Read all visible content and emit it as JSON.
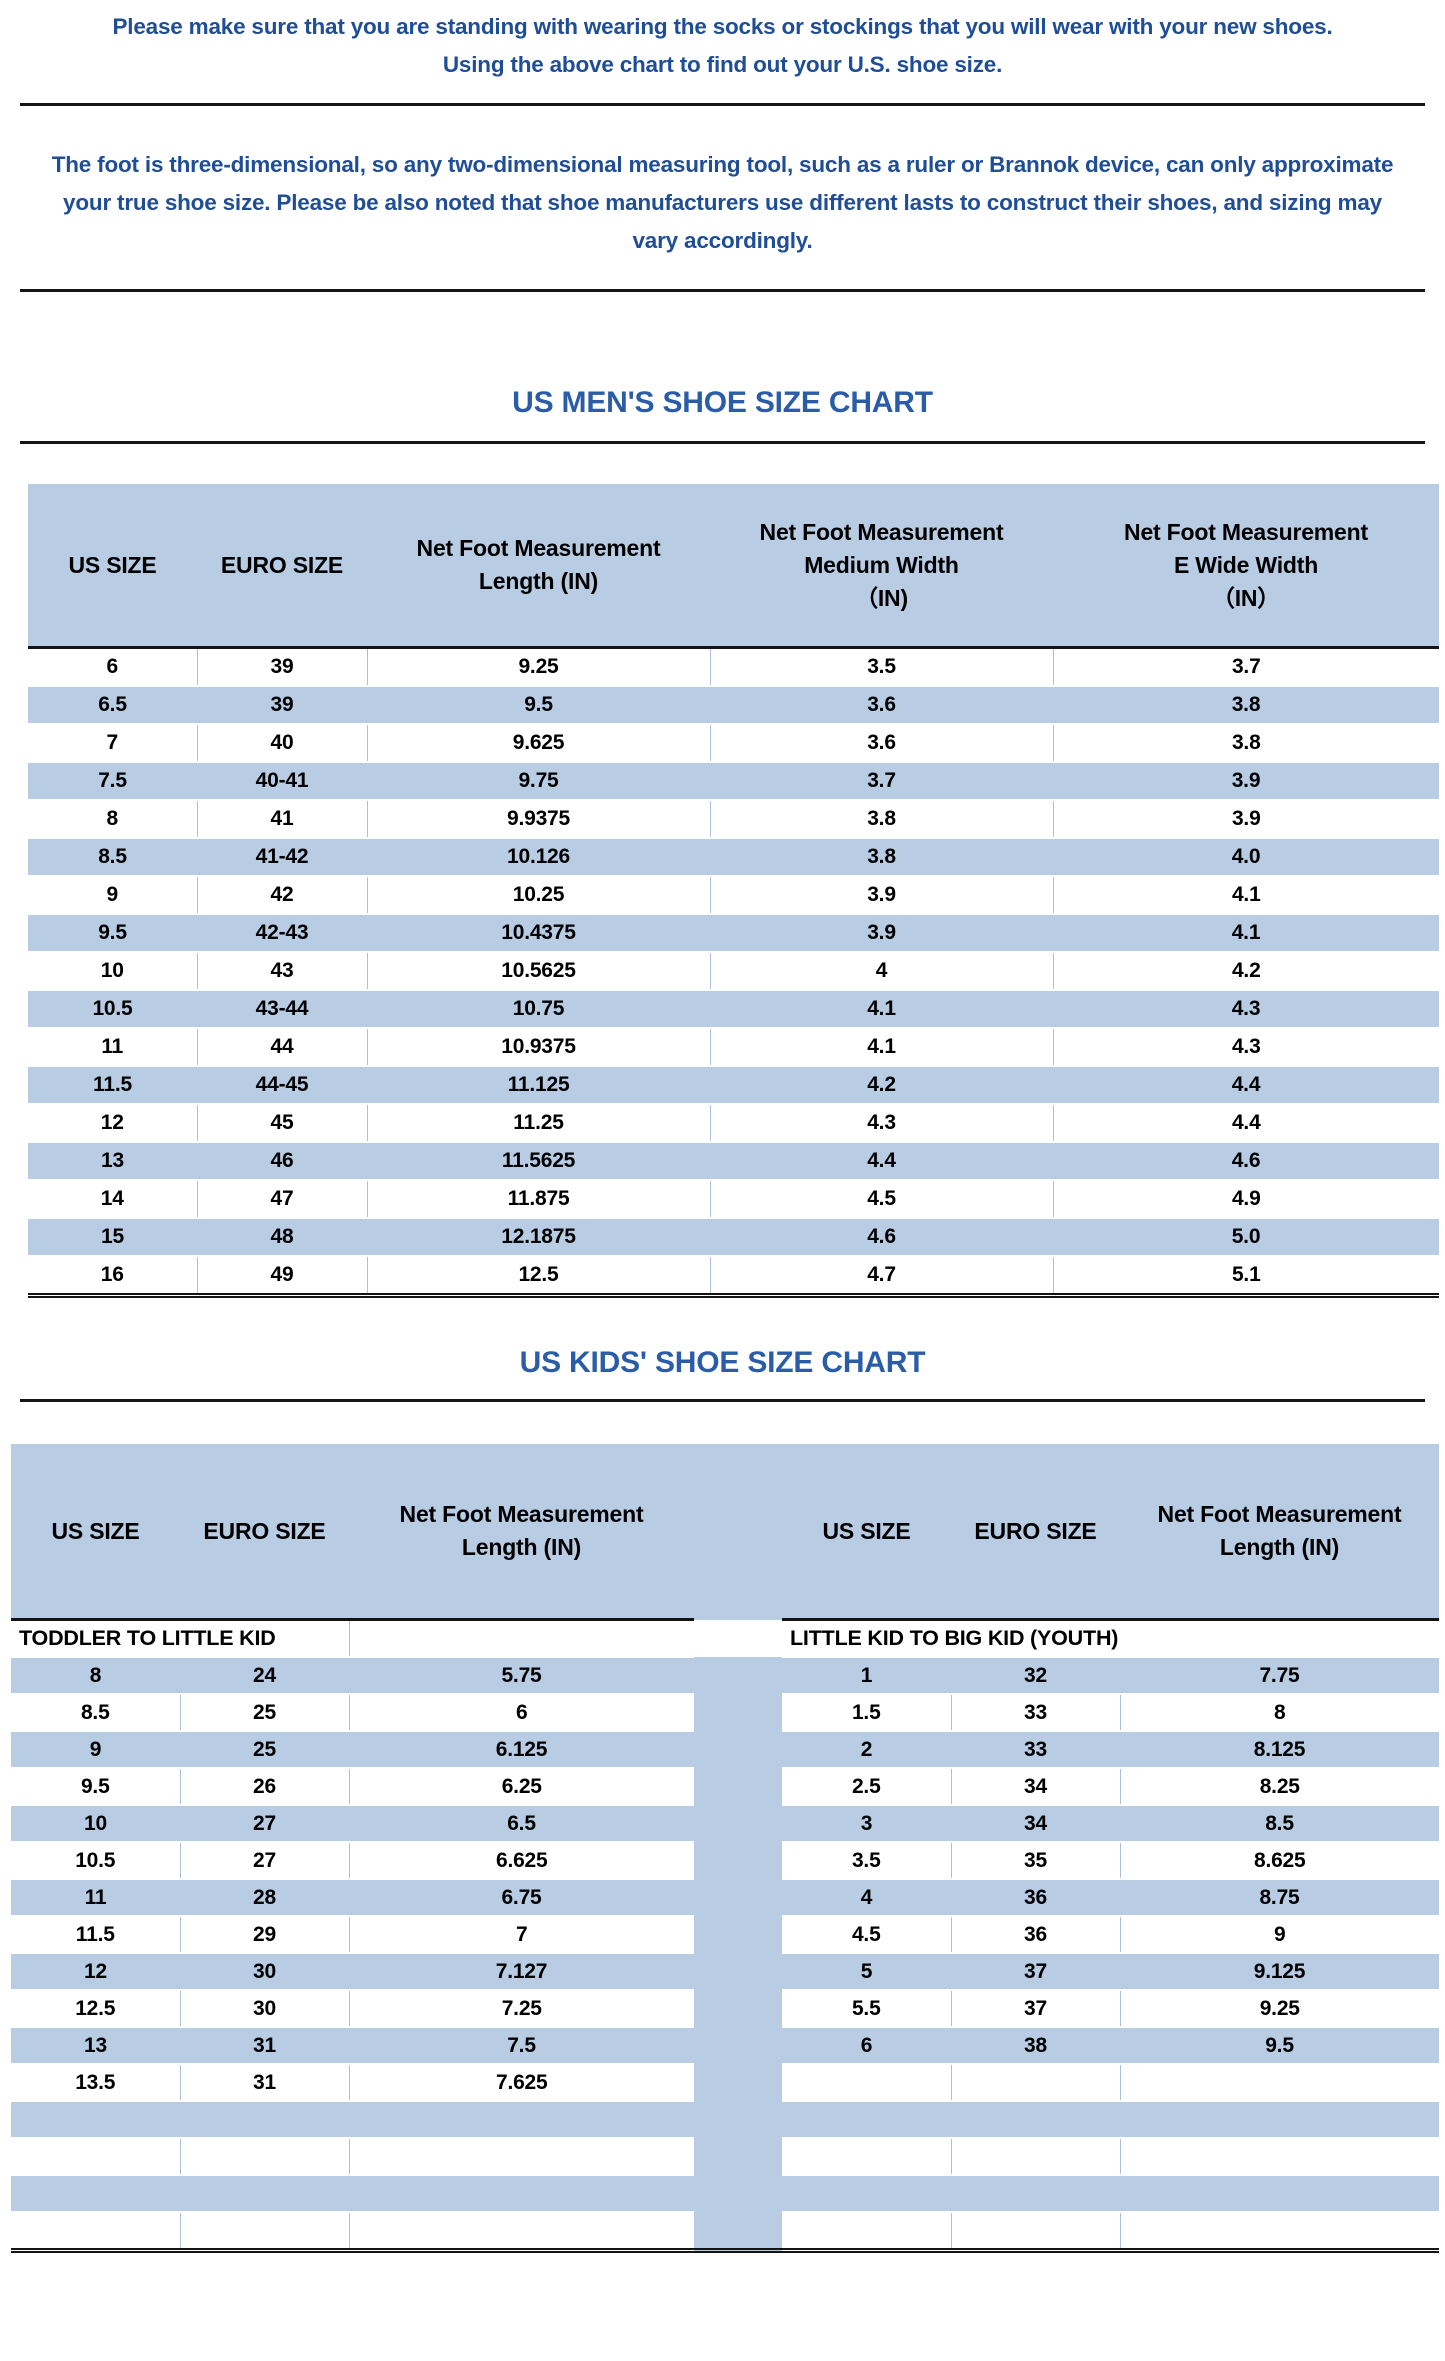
{
  "intro": {
    "line1": "Please make sure that you are standing with wearing the socks or stockings that you will wear with your new shoes.",
    "line2": "Using the above chart to find out your U.S. shoe size."
  },
  "note": "The foot is three-dimensional, so any two-dimensional measuring tool, such as a ruler or Brannok device, can only approximate your true shoe size. Please be also noted that shoe manufacturers use different lasts to construct their shoes, and sizing may vary accordingly.",
  "colors": {
    "table_fill_blue": "#b8cce4",
    "text_blue": "#1f4d96",
    "title_blue": "#2a5ca8"
  },
  "mens_chart": {
    "title": "US MEN'S SHOE SIZE CHART",
    "headers": [
      "US SIZE",
      "EURO SIZE",
      "Net Foot Measurement\nLength (IN)",
      "Net Foot Measurement\nMedium Width\n（IN)",
      "Net Foot Measurement\nE Wide Width\n（IN）"
    ],
    "rows": [
      {
        "s": "w",
        "c": [
          "6",
          "39",
          "9.25",
          "3.5",
          "3.7"
        ]
      },
      {
        "s": "b",
        "c": [
          "6.5",
          "39",
          "9.5",
          "3.6",
          "3.8"
        ]
      },
      {
        "s": "w",
        "c": [
          "7",
          "40",
          "9.625",
          "3.6",
          "3.8"
        ]
      },
      {
        "s": "b",
        "c": [
          "7.5",
          "40-41",
          "9.75",
          "3.7",
          "3.9"
        ]
      },
      {
        "s": "w",
        "c": [
          "8",
          "41",
          "9.9375",
          "3.8",
          "3.9"
        ]
      },
      {
        "s": "b",
        "c": [
          "8.5",
          "41-42",
          "10.126",
          "3.8",
          "4.0"
        ]
      },
      {
        "s": "w",
        "c": [
          "9",
          "42",
          "10.25",
          "3.9",
          "4.1"
        ]
      },
      {
        "s": "b",
        "c": [
          "9.5",
          "42-43",
          "10.4375",
          "3.9",
          "4.1"
        ]
      },
      {
        "s": "w",
        "c": [
          "10",
          "43",
          "10.5625",
          "4",
          "4.2"
        ]
      },
      {
        "s": "b",
        "c": [
          "10.5",
          "43-44",
          "10.75",
          "4.1",
          "4.3"
        ]
      },
      {
        "s": "w",
        "c": [
          "11",
          "44",
          "10.9375",
          "4.1",
          "4.3"
        ]
      },
      {
        "s": "b",
        "c": [
          "11.5",
          "44-45",
          "11.125",
          "4.2",
          "4.4"
        ]
      },
      {
        "s": "w",
        "c": [
          "12",
          "45",
          "11.25",
          "4.3",
          "4.4"
        ]
      },
      {
        "s": "b",
        "c": [
          "13",
          "46",
          "11.5625",
          "4.4",
          "4.6"
        ]
      },
      {
        "s": "w",
        "c": [
          "14",
          "47",
          "11.875",
          "4.5",
          "4.9"
        ]
      },
      {
        "s": "b",
        "c": [
          "15",
          "48",
          "12.1875",
          "4.6",
          "5.0"
        ]
      },
      {
        "s": "w",
        "c": [
          "16",
          "49",
          "12.5",
          "4.7",
          "5.1"
        ]
      }
    ]
  },
  "kids_chart": {
    "title": "US KIDS' SHOE SIZE CHART",
    "headers": [
      "US SIZE",
      "EURO SIZE",
      "Net Foot Measurement\nLength (IN)",
      "US SIZE",
      "EURO SIZE",
      "Net Foot Measurement\nLength (IN)"
    ],
    "group_left": "TODDLER TO LITTLE KID",
    "group_right": "LITTLE KID TO BIG KID (YOUTH)",
    "rows": [
      {
        "s": "b",
        "c": [
          "8",
          "24",
          "5.75",
          "1",
          "32",
          "7.75"
        ]
      },
      {
        "s": "w",
        "c": [
          "8.5",
          "25",
          "6",
          "1.5",
          "33",
          "8"
        ]
      },
      {
        "s": "b",
        "c": [
          "9",
          "25",
          "6.125",
          "2",
          "33",
          "8.125"
        ]
      },
      {
        "s": "w",
        "c": [
          "9.5",
          "26",
          "6.25",
          "2.5",
          "34",
          "8.25"
        ]
      },
      {
        "s": "b",
        "c": [
          "10",
          "27",
          "6.5",
          "3",
          "34",
          "8.5"
        ]
      },
      {
        "s": "w",
        "c": [
          "10.5",
          "27",
          "6.625",
          "3.5",
          "35",
          "8.625"
        ]
      },
      {
        "s": "b",
        "c": [
          "11",
          "28",
          "6.75",
          "4",
          "36",
          "8.75"
        ]
      },
      {
        "s": "w",
        "c": [
          "11.5",
          "29",
          "7",
          "4.5",
          "36",
          "9"
        ]
      },
      {
        "s": "b",
        "c": [
          "12",
          "30",
          "7.127",
          "5",
          "37",
          "9.125"
        ]
      },
      {
        "s": "w",
        "c": [
          "12.5",
          "30",
          "7.25",
          "5.5",
          "37",
          "9.25"
        ]
      },
      {
        "s": "b",
        "c": [
          "13",
          "31",
          "7.5",
          "6",
          "38",
          "9.5"
        ]
      },
      {
        "s": "w",
        "c": [
          "13.5",
          "31",
          "7.625",
          "",
          "",
          ""
        ]
      },
      {
        "s": "b",
        "c": [
          "",
          "",
          "",
          "",
          "",
          ""
        ]
      },
      {
        "s": "w",
        "c": [
          "",
          "",
          "",
          "",
          "",
          ""
        ]
      },
      {
        "s": "b",
        "c": [
          "",
          "",
          "",
          "",
          "",
          ""
        ]
      },
      {
        "s": "w",
        "c": [
          "",
          "",
          "",
          "",
          "",
          ""
        ]
      }
    ]
  }
}
